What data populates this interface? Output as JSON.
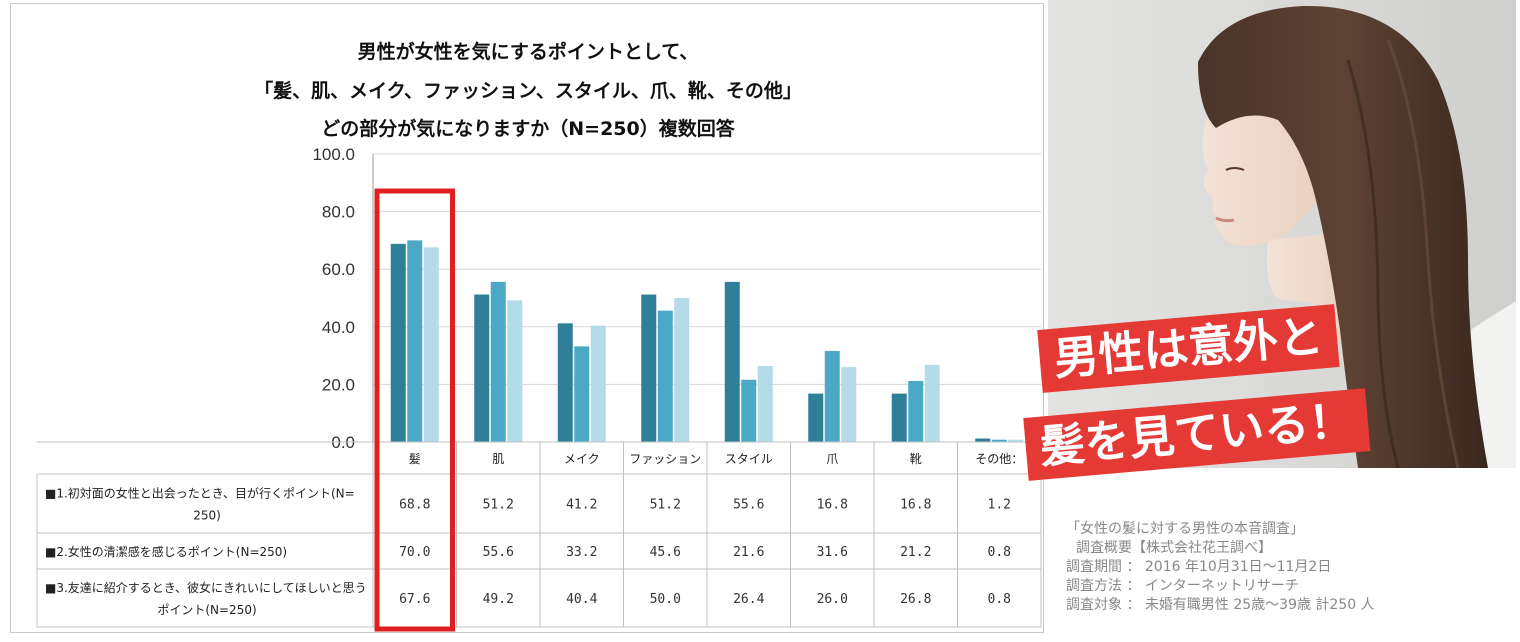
{
  "chart_data": {
    "type": "bar",
    "title_lines": [
      "男性が女性を気にするポイントとして、",
      "「髪、肌、メイク、ファッション、スタイル、爪、靴、その他」",
      "どの部分が気になりますか（N=250）複数回答"
    ],
    "categories": [
      "髪",
      "肌",
      "メイク",
      "ファッション",
      "スタイル",
      "爪",
      "靴",
      "その他："
    ],
    "y_tick_labels": [
      "0.0",
      "20.0",
      "40.0",
      "60.0",
      "80.0",
      "100.0"
    ],
    "ylim": [
      0,
      100
    ],
    "grid": true,
    "series": [
      {
        "name_lines": [
          "■1.初対面の女性と出会ったとき、目が行くポイント(N=",
          "250)"
        ],
        "color": "#2e7f97",
        "values": [
          68.8,
          51.2,
          41.2,
          51.2,
          55.6,
          16.8,
          16.8,
          1.2
        ],
        "labels": [
          "68.8",
          "51.2",
          "41.2",
          "51.2",
          "55.6",
          "16.8",
          "16.8",
          "1.2"
        ]
      },
      {
        "name_lines": [
          "■2.女性の清潔感を感じるポイント(N=250)"
        ],
        "color": "#4ba9c6",
        "values": [
          70.0,
          55.6,
          33.2,
          45.6,
          21.6,
          31.6,
          21.2,
          0.8
        ],
        "labels": [
          "70.0",
          "55.6",
          "33.2",
          "45.6",
          "21.6",
          "31.6",
          "21.2",
          "0.8"
        ]
      },
      {
        "name_lines": [
          "■3.友達に紹介するとき、彼女にきれいにしてほしいと思う",
          "ポイント(N=250)"
        ],
        "color": "#b6dbe8",
        "values": [
          67.6,
          49.2,
          40.4,
          50.0,
          26.4,
          26.0,
          26.8,
          0.8
        ],
        "labels": [
          "67.6",
          "49.2",
          "40.4",
          "50.0",
          "26.4",
          "26.0",
          "26.8",
          "0.8"
        ]
      }
    ],
    "highlight_color": "#e02020"
  },
  "banner": {
    "line1": "男性は意外と",
    "line2": "髪を見ている！",
    "color": "#e53935"
  },
  "source_note": {
    "line1": "「女性の髪に対する男性の本音調査」",
    "line2": "調査概要【株式会社花王調べ】",
    "line3": "調査期間 ： 2016 年10月31日〜11月2日",
    "line4": "調査方法 ： インターネットリサーチ",
    "line5": "調査対象 ： 未婚有職男性 25歳〜39歳 計250 人"
  }
}
